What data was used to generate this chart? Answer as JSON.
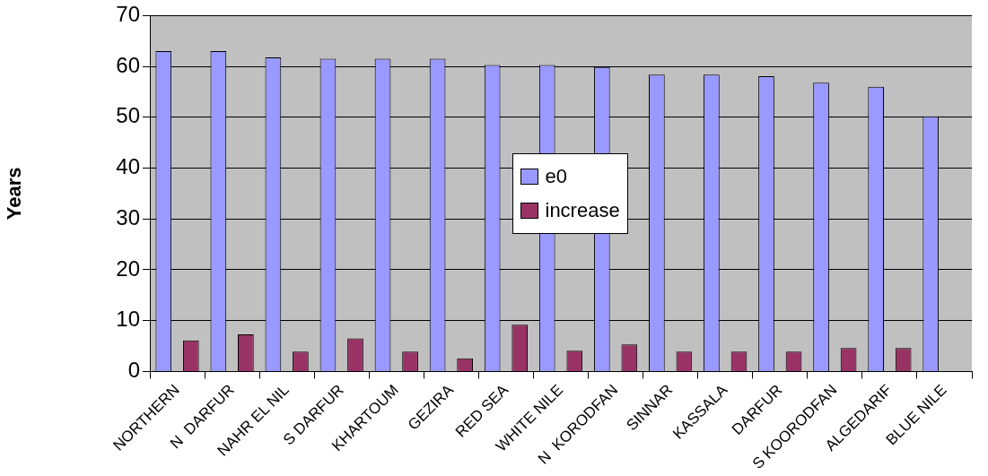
{
  "chart_data": {
    "type": "bar",
    "ylabel": "Years",
    "categories": [
      "NORTHERN",
      "N  DARFUR",
      "NAHR EL NIL",
      "S DARFUR",
      "KHARTOUM",
      "GEZIRA",
      "RED SEA",
      "WHITE NILE",
      "N  KORODFAN",
      "SINNAR",
      "KASSALA",
      "DARFUR",
      "S KOORODFAN",
      "ALGEDARIF",
      "BLUE NILE"
    ],
    "series": [
      {
        "name": "e0",
        "color": "#9999ff",
        "values": [
          63.0,
          63.0,
          61.8,
          61.5,
          61.5,
          61.5,
          60.3,
          60.3,
          59.9,
          58.4,
          58.4,
          58.1,
          56.8,
          56.0,
          50.2
        ]
      },
      {
        "name": "increase",
        "color": "#993366",
        "values": [
          6.1,
          7.3,
          3.9,
          6.5,
          3.9,
          2.6,
          9.2,
          4.1,
          5.3,
          3.9,
          3.9,
          3.9,
          4.6,
          4.6,
          null
        ]
      }
    ],
    "ylim": [
      0,
      70
    ],
    "yticks": [
      0,
      10,
      20,
      30,
      40,
      50,
      60,
      70
    ],
    "grid": "y",
    "legend": "center"
  }
}
